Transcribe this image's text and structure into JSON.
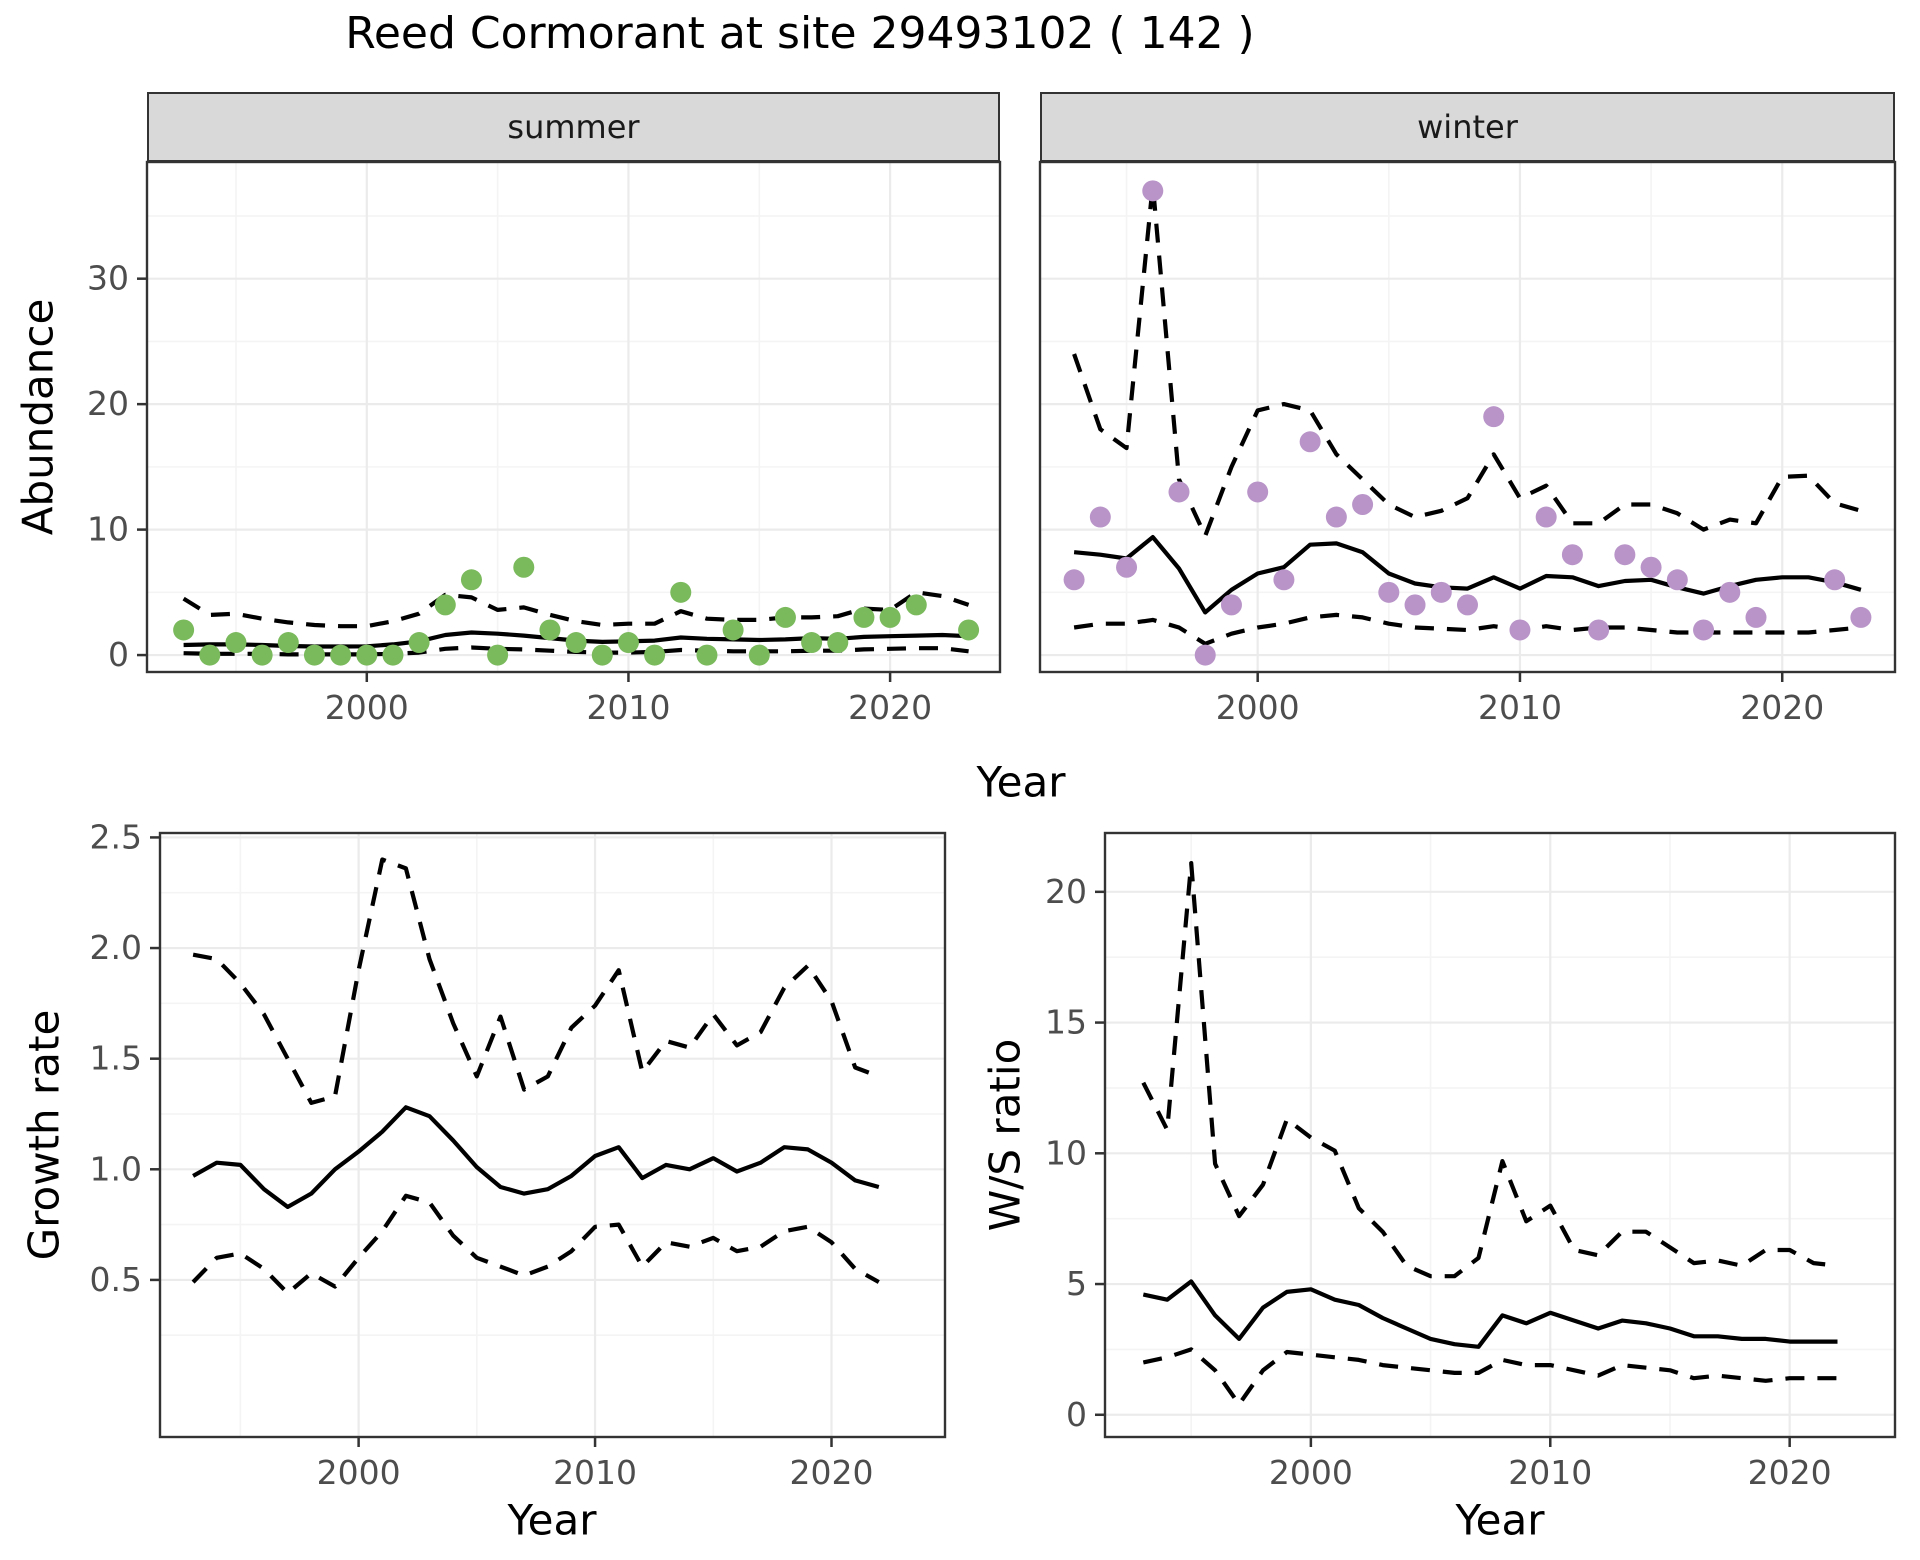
{
  "title": "Reed Cormorant at site 29493102 ( 142 )",
  "colors": {
    "summer_point": "#7ab95c",
    "winter_point": "#b894c8",
    "line": "#000000",
    "strip_bg": "#d9d9d9",
    "panel_border": "#333333",
    "grid_major": "#ebebeb",
    "grid_minor": "#f4f4f4",
    "tick_text": "#4d4d4d",
    "tick_mark": "#333333"
  },
  "facets": {
    "summer": "summer",
    "winter": "winter"
  },
  "axes": {
    "abundance_label": "Abundance",
    "growth_label": "Growth rate",
    "ws_label": "W/S ratio",
    "year_label_top": "Year",
    "year_label_growth": "Year",
    "year_label_ws": "Year"
  },
  "chart_data": [
    {
      "id": "summer",
      "type": "line",
      "facet_title": "summer",
      "xlabel": "Year",
      "ylabel": "Abundance",
      "x": [
        1993,
        1994,
        1995,
        1996,
        1997,
        1998,
        1999,
        2000,
        2001,
        2002,
        2003,
        2004,
        2005,
        2006,
        2007,
        2008,
        2009,
        2010,
        2011,
        2012,
        2013,
        2014,
        2015,
        2016,
        2017,
        2018,
        2019,
        2020,
        2021,
        2022,
        2023
      ],
      "x_ticks": {
        "values": [
          2000,
          2010,
          2020
        ],
        "labels": [
          "2000",
          "2010",
          "2020"
        ]
      },
      "x_minor": [
        1995,
        2005,
        2015
      ],
      "y_ticks": {
        "values": [
          0,
          10,
          20,
          30
        ],
        "labels": [
          "0",
          "10",
          "20",
          "30"
        ]
      },
      "y_minor": [
        5,
        15,
        25,
        35
      ],
      "ylim": [
        -1.35,
        39.3
      ],
      "series": [
        {
          "name": "ci-upper",
          "style": "dashed",
          "color_key": "line",
          "values": [
            4.5,
            3.2,
            3.3,
            2.9,
            2.6,
            2.4,
            2.3,
            2.3,
            2.7,
            3.3,
            4.8,
            4.6,
            3.6,
            3.8,
            3.2,
            2.7,
            2.4,
            2.5,
            2.5,
            3.5,
            2.9,
            2.8,
            2.8,
            3.0,
            3.0,
            3.1,
            3.7,
            3.6,
            5.0,
            4.7,
            4.0
          ]
        },
        {
          "name": "ci-lower",
          "style": "dashed",
          "color_key": "line",
          "values": [
            0.15,
            0.1,
            0.1,
            0.1,
            0.05,
            0.05,
            0.05,
            0.05,
            0.1,
            0.2,
            0.5,
            0.6,
            0.5,
            0.45,
            0.35,
            0.25,
            0.2,
            0.2,
            0.25,
            0.4,
            0.35,
            0.3,
            0.3,
            0.3,
            0.35,
            0.35,
            0.45,
            0.5,
            0.55,
            0.55,
            0.3
          ]
        },
        {
          "name": "fit",
          "style": "solid",
          "color_key": "line",
          "values": [
            0.8,
            0.85,
            0.85,
            0.8,
            0.72,
            0.68,
            0.68,
            0.7,
            0.85,
            1.1,
            1.6,
            1.8,
            1.7,
            1.55,
            1.35,
            1.15,
            1.05,
            1.1,
            1.15,
            1.4,
            1.3,
            1.25,
            1.2,
            1.25,
            1.35,
            1.3,
            1.45,
            1.5,
            1.55,
            1.6,
            1.5
          ]
        },
        {
          "name": "observed-counts",
          "style": "points",
          "color_key": "summer_point",
          "values": [
            2,
            0,
            1,
            0,
            1,
            0,
            0,
            0,
            0,
            1,
            4,
            6,
            0,
            7,
            2,
            1,
            0,
            1,
            0,
            5,
            0,
            2,
            0,
            3,
            1,
            1,
            3,
            3,
            4,
            null,
            2
          ]
        }
      ]
    },
    {
      "id": "winter",
      "type": "line",
      "facet_title": "winter",
      "xlabel": "Year",
      "ylabel": "Abundance",
      "x": [
        1993,
        1994,
        1995,
        1996,
        1997,
        1998,
        1999,
        2000,
        2001,
        2002,
        2003,
        2004,
        2005,
        2006,
        2007,
        2008,
        2009,
        2010,
        2011,
        2012,
        2013,
        2014,
        2015,
        2016,
        2017,
        2018,
        2019,
        2020,
        2021,
        2022,
        2023
      ],
      "x_ticks": {
        "values": [
          2000,
          2010,
          2020
        ],
        "labels": [
          "2000",
          "2010",
          "2020"
        ]
      },
      "x_minor": [
        1995,
        2005,
        2015
      ],
      "y_ticks": {
        "values": [
          0,
          10,
          20,
          30
        ],
        "labels": [
          "0",
          "10",
          "20",
          "30"
        ]
      },
      "y_minor": [
        5,
        15,
        25,
        35
      ],
      "ylim": [
        -1.35,
        39.3
      ],
      "series": [
        {
          "name": "ci-upper",
          "style": "dashed",
          "color_key": "line",
          "values": [
            24,
            18,
            16.5,
            37.5,
            14,
            9.5,
            15,
            19.5,
            20,
            19.5,
            16,
            14,
            12,
            11,
            11.5,
            12.5,
            16,
            12.5,
            13.5,
            10.5,
            10.5,
            12,
            12,
            11.3,
            10,
            10.8,
            10.5,
            14.2,
            14.3,
            12.1,
            11.5
          ]
        },
        {
          "name": "ci-lower",
          "style": "dashed",
          "color_key": "line",
          "values": [
            2.2,
            2.5,
            2.5,
            2.8,
            2.2,
            0.9,
            1.7,
            2.2,
            2.5,
            3.0,
            3.2,
            3.0,
            2.5,
            2.2,
            2.1,
            2.0,
            2.3,
            2.0,
            2.3,
            2.0,
            2.2,
            2.2,
            2.0,
            1.8,
            1.8,
            1.8,
            1.8,
            1.8,
            1.8,
            2.0,
            2.2
          ]
        },
        {
          "name": "fit",
          "style": "solid",
          "color_key": "line",
          "values": [
            8.2,
            8.0,
            7.7,
            9.4,
            6.9,
            3.4,
            5.2,
            6.5,
            7.0,
            8.8,
            8.9,
            8.2,
            6.5,
            5.7,
            5.4,
            5.3,
            6.2,
            5.3,
            6.3,
            6.2,
            5.5,
            5.9,
            6.0,
            5.4,
            4.9,
            5.5,
            6.0,
            6.2,
            6.2,
            5.8,
            5.2
          ]
        },
        {
          "name": "observed-counts",
          "style": "points",
          "color_key": "winter_point",
          "values": [
            6,
            11,
            7,
            37,
            13,
            0,
            4,
            13,
            6,
            17,
            11,
            12,
            5,
            4,
            5,
            4,
            19,
            2,
            11,
            8,
            2,
            8,
            7,
            6,
            2,
            5,
            3,
            null,
            null,
            6,
            3
          ]
        }
      ]
    },
    {
      "id": "growth",
      "type": "line",
      "facet_title": "",
      "xlabel": "Year",
      "ylabel": "Growth rate",
      "x": [
        1993,
        1994,
        1995,
        1996,
        1997,
        1998,
        1999,
        2000,
        2001,
        2002,
        2003,
        2004,
        2005,
        2006,
        2007,
        2008,
        2009,
        2010,
        2011,
        2012,
        2013,
        2014,
        2015,
        2016,
        2017,
        2018,
        2019,
        2020,
        2021,
        2022
      ],
      "x_ticks": {
        "values": [
          2000,
          2010,
          2020
        ],
        "labels": [
          "2000",
          "2010",
          "2020"
        ]
      },
      "x_minor": [
        1995,
        2005,
        2015
      ],
      "y_ticks": {
        "values": [
          0.5,
          1.0,
          1.5,
          2.0,
          2.5
        ],
        "labels": [
          "0.5",
          "1.0",
          "1.5",
          "2.0",
          "2.5"
        ]
      },
      "y_minor": [
        0.25,
        0.75,
        1.25,
        1.75,
        2.25
      ],
      "ylim": [
        -0.21,
        2.52
      ],
      "series": [
        {
          "name": "ci-upper",
          "style": "dashed",
          "color_key": "line",
          "values": [
            1.97,
            1.95,
            1.84,
            1.7,
            1.5,
            1.3,
            1.33,
            1.9,
            2.4,
            2.36,
            1.95,
            1.66,
            1.42,
            1.69,
            1.36,
            1.42,
            1.64,
            1.74,
            1.9,
            1.44,
            1.58,
            1.55,
            1.7,
            1.56,
            1.62,
            1.82,
            1.92,
            1.76,
            1.46,
            1.42
          ]
        },
        {
          "name": "ci-lower",
          "style": "dashed",
          "color_key": "line",
          "values": [
            0.49,
            0.6,
            0.62,
            0.55,
            0.44,
            0.53,
            0.47,
            0.6,
            0.72,
            0.88,
            0.85,
            0.7,
            0.6,
            0.56,
            0.52,
            0.56,
            0.63,
            0.74,
            0.75,
            0.56,
            0.67,
            0.65,
            0.69,
            0.63,
            0.65,
            0.72,
            0.74,
            0.67,
            0.55,
            0.49
          ]
        },
        {
          "name": "fit",
          "style": "solid",
          "color_key": "line",
          "values": [
            0.97,
            1.03,
            1.02,
            0.91,
            0.83,
            0.89,
            1.0,
            1.08,
            1.17,
            1.28,
            1.24,
            1.13,
            1.01,
            0.92,
            0.89,
            0.91,
            0.97,
            1.06,
            1.1,
            0.96,
            1.02,
            1.0,
            1.05,
            0.99,
            1.03,
            1.1,
            1.09,
            1.03,
            0.95,
            0.92
          ]
        }
      ]
    },
    {
      "id": "ws",
      "type": "line",
      "facet_title": "",
      "xlabel": "Year",
      "ylabel": "W/S ratio",
      "x": [
        1993,
        1994,
        1995,
        1996,
        1997,
        1998,
        1999,
        2000,
        2001,
        2002,
        2003,
        2004,
        2005,
        2006,
        2007,
        2008,
        2009,
        2010,
        2011,
        2012,
        2013,
        2014,
        2015,
        2016,
        2017,
        2018,
        2019,
        2020,
        2021,
        2022
      ],
      "x_ticks": {
        "values": [
          2000,
          2010,
          2020
        ],
        "labels": [
          "2000",
          "2010",
          "2020"
        ]
      },
      "x_minor": [
        1995,
        2005,
        2015
      ],
      "y_ticks": {
        "values": [
          0,
          5,
          10,
          15,
          20
        ],
        "labels": [
          "0",
          "5",
          "10",
          "15",
          "20"
        ]
      },
      "y_minor": [
        2.5,
        7.5,
        12.5,
        17.5
      ],
      "ylim": [
        -0.85,
        22.25
      ],
      "series": [
        {
          "name": "ci-upper",
          "style": "dashed",
          "color_key": "line",
          "values": [
            12.7,
            10.9,
            21.1,
            9.6,
            7.6,
            8.8,
            11.3,
            10.6,
            10.1,
            7.9,
            7.0,
            5.7,
            5.3,
            5.3,
            6.0,
            9.7,
            7.4,
            8.0,
            6.3,
            6.1,
            7.0,
            7.0,
            6.4,
            5.8,
            5.9,
            5.7,
            6.3,
            6.3,
            5.8,
            5.7
          ]
        },
        {
          "name": "ci-lower",
          "style": "dashed",
          "color_key": "line",
          "values": [
            2.0,
            2.2,
            2.5,
            1.7,
            0.4,
            1.7,
            2.4,
            2.3,
            2.2,
            2.1,
            1.9,
            1.8,
            1.7,
            1.6,
            1.6,
            2.1,
            1.9,
            1.9,
            1.7,
            1.5,
            1.9,
            1.8,
            1.7,
            1.4,
            1.5,
            1.4,
            1.3,
            1.4,
            1.4,
            1.4
          ]
        },
        {
          "name": "fit",
          "style": "solid",
          "color_key": "line",
          "values": [
            4.6,
            4.4,
            5.1,
            3.8,
            2.9,
            4.1,
            4.7,
            4.8,
            4.4,
            4.2,
            3.7,
            3.3,
            2.9,
            2.7,
            2.6,
            3.8,
            3.5,
            3.9,
            3.6,
            3.3,
            3.6,
            3.5,
            3.3,
            3.0,
            3.0,
            2.9,
            2.9,
            2.8,
            2.8,
            2.8
          ]
        }
      ]
    }
  ]
}
